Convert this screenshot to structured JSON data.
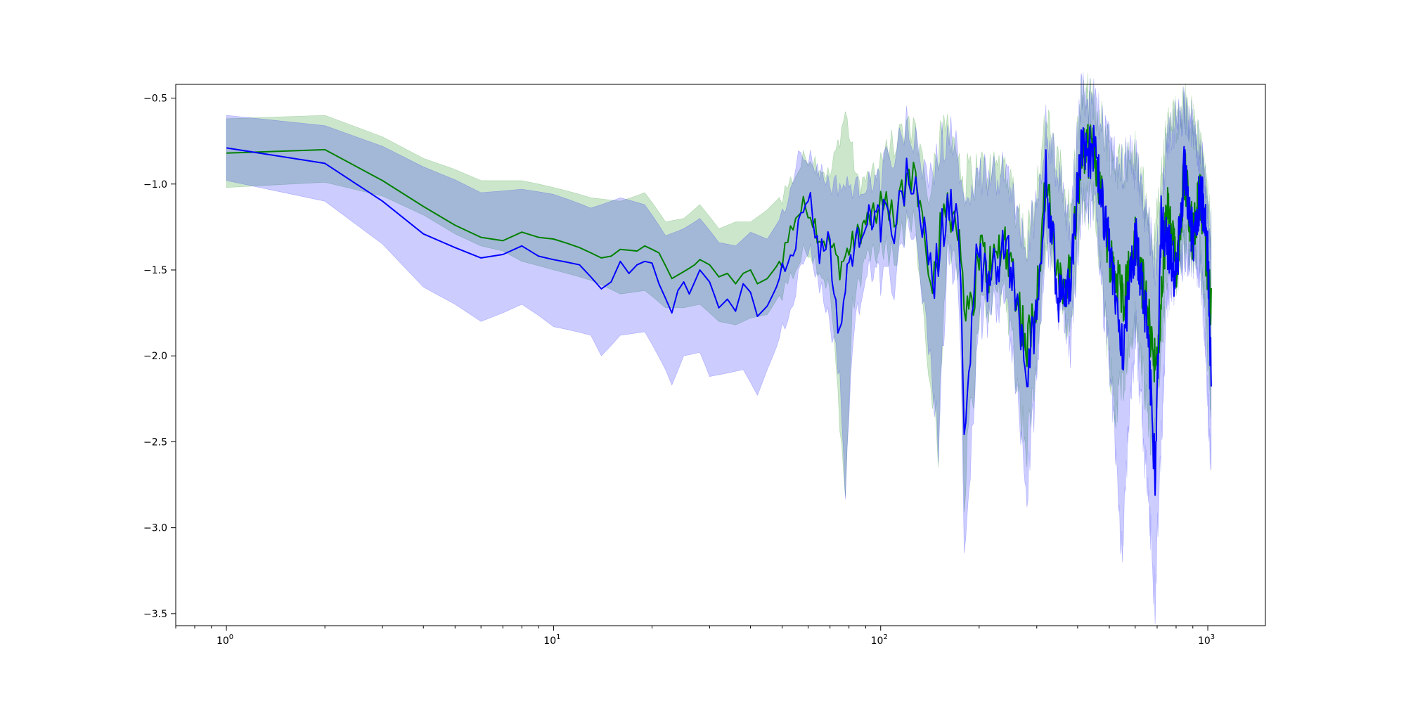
{
  "chart_data": {
    "type": "line",
    "title": "",
    "xlabel": "",
    "ylabel": "",
    "xscale": "log",
    "xlim": [
      0.7,
      1500
    ],
    "ylim": [
      -3.57,
      -0.42
    ],
    "grid": false,
    "legend": "none",
    "x_ticks": [
      {
        "value": 1,
        "base": "10",
        "exp": "0"
      },
      {
        "value": 10,
        "base": "10",
        "exp": "1"
      },
      {
        "value": 100,
        "base": "10",
        "exp": "2"
      },
      {
        "value": 1000,
        "base": "10",
        "exp": "3"
      }
    ],
    "y_ticks": [
      {
        "value": -0.5,
        "label": "−0.5"
      },
      {
        "value": -1.0,
        "label": "−1.0"
      },
      {
        "value": -1.5,
        "label": "−1.5"
      },
      {
        "value": -2.0,
        "label": "−2.0"
      },
      {
        "value": -2.5,
        "label": "−2.5"
      },
      {
        "value": -3.0,
        "label": "−3.0"
      },
      {
        "value": -3.5,
        "label": "−3.5"
      }
    ],
    "x_max": 1024,
    "series": [
      {
        "color": "#008000",
        "band_color": "#008000",
        "band_alpha": 0.2,
        "points": [
          [
            1,
            -0.82
          ],
          [
            2,
            -0.8
          ],
          [
            3,
            -0.98
          ],
          [
            4,
            -1.13
          ],
          [
            5,
            -1.24
          ],
          [
            6,
            -1.31
          ],
          [
            7,
            -1.33
          ],
          [
            8,
            -1.28
          ],
          [
            9,
            -1.31
          ],
          [
            10,
            -1.32
          ],
          [
            12,
            -1.37
          ],
          [
            14,
            -1.43
          ],
          [
            15,
            -1.42
          ],
          [
            16,
            -1.38
          ],
          [
            18,
            -1.39
          ],
          [
            19,
            -1.36
          ],
          [
            21,
            -1.4
          ],
          [
            23,
            -1.55
          ],
          [
            25,
            -1.51
          ],
          [
            27,
            -1.47
          ],
          [
            28,
            -1.44
          ],
          [
            30,
            -1.47
          ],
          [
            32,
            -1.54
          ],
          [
            34,
            -1.52
          ],
          [
            36,
            -1.58
          ],
          [
            38,
            -1.52
          ],
          [
            40,
            -1.5
          ],
          [
            42,
            -1.58
          ],
          [
            45,
            -1.55
          ],
          [
            48,
            -1.48
          ],
          [
            50,
            -1.42
          ],
          [
            55,
            -1.18
          ],
          [
            60,
            -1.12
          ],
          [
            65,
            -1.3
          ],
          [
            70,
            -1.35
          ],
          [
            75,
            -1.48
          ],
          [
            80,
            -1.38
          ],
          [
            90,
            -1.22
          ],
          [
            100,
            -1.16
          ],
          [
            110,
            -1.22
          ],
          [
            125,
            -0.9
          ],
          [
            135,
            -1.2
          ],
          [
            145,
            -1.55
          ],
          [
            160,
            -1.06
          ],
          [
            175,
            -1.32
          ],
          [
            185,
            -1.85
          ],
          [
            200,
            -1.38
          ],
          [
            215,
            -1.5
          ],
          [
            240,
            -1.32
          ],
          [
            260,
            -1.62
          ],
          [
            280,
            -1.96
          ],
          [
            300,
            -1.64
          ],
          [
            320,
            -0.98
          ],
          [
            350,
            -1.62
          ],
          [
            380,
            -1.52
          ],
          [
            410,
            -0.82
          ],
          [
            450,
            -0.8
          ],
          [
            500,
            -1.4
          ],
          [
            550,
            -1.66
          ],
          [
            600,
            -1.34
          ],
          [
            650,
            -1.72
          ],
          [
            700,
            -2.1
          ],
          [
            750,
            -1.12
          ],
          [
            800,
            -1.48
          ],
          [
            850,
            -0.92
          ],
          [
            900,
            -1.32
          ],
          [
            950,
            -1.04
          ],
          [
            1024,
            -1.74
          ]
        ],
        "lower": [
          [
            1,
            -1.02
          ],
          [
            2,
            -0.99
          ],
          [
            4,
            -1.15
          ],
          [
            6,
            -1.33
          ],
          [
            8,
            -1.45
          ],
          [
            10,
            -1.5
          ],
          [
            13,
            -1.56
          ],
          [
            16,
            -1.64
          ],
          [
            19,
            -1.62
          ],
          [
            22,
            -1.72
          ],
          [
            25,
            -1.72
          ],
          [
            28,
            -1.7
          ],
          [
            32,
            -1.8
          ],
          [
            36,
            -1.82
          ],
          [
            40,
            -1.78
          ],
          [
            45,
            -1.76
          ],
          [
            50,
            -1.62
          ],
          [
            60,
            -1.36
          ],
          [
            70,
            -1.62
          ],
          [
            78,
            -2.82
          ],
          [
            82,
            -1.72
          ],
          [
            90,
            -1.42
          ],
          [
            110,
            -1.42
          ],
          [
            125,
            -1.12
          ],
          [
            150,
            -2.48
          ],
          [
            160,
            -1.26
          ],
          [
            175,
            -1.5
          ],
          [
            180,
            -2.75
          ],
          [
            200,
            -1.72
          ],
          [
            240,
            -1.56
          ],
          [
            280,
            -2.55
          ],
          [
            320,
            -1.3
          ],
          [
            380,
            -1.84
          ],
          [
            410,
            -1.08
          ],
          [
            450,
            -1.06
          ],
          [
            520,
            -2.32
          ],
          [
            600,
            -1.76
          ],
          [
            680,
            -2.55
          ],
          [
            750,
            -1.5
          ],
          [
            850,
            -1.3
          ],
          [
            950,
            -1.38
          ],
          [
            1024,
            -2.26
          ]
        ],
        "upper": [
          [
            1,
            -0.62
          ],
          [
            2,
            -0.6
          ],
          [
            4,
            -0.85
          ],
          [
            6,
            -0.98
          ],
          [
            8,
            -0.98
          ],
          [
            10,
            -1.02
          ],
          [
            13,
            -1.08
          ],
          [
            16,
            -1.1
          ],
          [
            19,
            -1.05
          ],
          [
            22,
            -1.22
          ],
          [
            25,
            -1.2
          ],
          [
            28,
            -1.12
          ],
          [
            32,
            -1.26
          ],
          [
            36,
            -1.22
          ],
          [
            40,
            -1.22
          ],
          [
            45,
            -1.15
          ],
          [
            50,
            -1.06
          ],
          [
            60,
            -0.82
          ],
          [
            70,
            -0.96
          ],
          [
            78,
            -0.58
          ],
          [
            85,
            -1.0
          ],
          [
            100,
            -0.92
          ],
          [
            125,
            -0.66
          ],
          [
            140,
            -1.0
          ],
          [
            160,
            -0.64
          ],
          [
            180,
            -1.02
          ],
          [
            200,
            -0.96
          ],
          [
            240,
            -0.92
          ],
          [
            280,
            -1.38
          ],
          [
            320,
            -0.66
          ],
          [
            380,
            -1.22
          ],
          [
            410,
            -0.53
          ],
          [
            450,
            -0.57
          ],
          [
            520,
            -0.92
          ],
          [
            600,
            -0.86
          ],
          [
            680,
            -1.42
          ],
          [
            750,
            -0.72
          ],
          [
            850,
            -0.57
          ],
          [
            950,
            -0.82
          ],
          [
            1024,
            -1.3
          ]
        ]
      },
      {
        "color": "#0000ff",
        "band_color": "#0000ff",
        "band_alpha": 0.2,
        "points": [
          [
            1,
            -0.79
          ],
          [
            2,
            -0.88
          ],
          [
            3,
            -1.1
          ],
          [
            4,
            -1.29
          ],
          [
            5,
            -1.37
          ],
          [
            6,
            -1.43
          ],
          [
            7,
            -1.41
          ],
          [
            8,
            -1.36
          ],
          [
            9,
            -1.42
          ],
          [
            10,
            -1.44
          ],
          [
            12,
            -1.47
          ],
          [
            14,
            -1.61
          ],
          [
            15,
            -1.57
          ],
          [
            16,
            -1.45
          ],
          [
            17,
            -1.52
          ],
          [
            18,
            -1.47
          ],
          [
            19,
            -1.45
          ],
          [
            20,
            -1.46
          ],
          [
            21,
            -1.58
          ],
          [
            23,
            -1.75
          ],
          [
            24,
            -1.62
          ],
          [
            25,
            -1.57
          ],
          [
            26,
            -1.64
          ],
          [
            28,
            -1.5
          ],
          [
            30,
            -1.57
          ],
          [
            32,
            -1.72
          ],
          [
            34,
            -1.67
          ],
          [
            36,
            -1.74
          ],
          [
            38,
            -1.58
          ],
          [
            40,
            -1.63
          ],
          [
            42,
            -1.77
          ],
          [
            45,
            -1.71
          ],
          [
            48,
            -1.6
          ],
          [
            52,
            -1.4
          ],
          [
            55,
            -1.32
          ],
          [
            60,
            -1.04
          ],
          [
            65,
            -1.4
          ],
          [
            70,
            -1.3
          ],
          [
            72,
            -1.68
          ],
          [
            75,
            -1.85
          ],
          [
            80,
            -1.45
          ],
          [
            90,
            -1.2
          ],
          [
            100,
            -1.18
          ],
          [
            110,
            -1.24
          ],
          [
            125,
            -0.88
          ],
          [
            135,
            -1.25
          ],
          [
            145,
            -1.6
          ],
          [
            160,
            -1.06
          ],
          [
            175,
            -1.35
          ],
          [
            180,
            -2.4
          ],
          [
            195,
            -1.46
          ],
          [
            215,
            -1.55
          ],
          [
            240,
            -1.32
          ],
          [
            260,
            -1.7
          ],
          [
            280,
            -2.15
          ],
          [
            300,
            -1.7
          ],
          [
            320,
            -0.96
          ],
          [
            350,
            -1.68
          ],
          [
            380,
            -1.55
          ],
          [
            410,
            -0.78
          ],
          [
            450,
            -0.82
          ],
          [
            500,
            -1.4
          ],
          [
            550,
            -1.95
          ],
          [
            600,
            -1.32
          ],
          [
            650,
            -1.8
          ],
          [
            690,
            -2.68
          ],
          [
            720,
            -1.2
          ],
          [
            800,
            -1.55
          ],
          [
            850,
            -0.88
          ],
          [
            900,
            -1.35
          ],
          [
            950,
            -1.02
          ],
          [
            1000,
            -1.4
          ],
          [
            1024,
            -2.15
          ]
        ],
        "lower": [
          [
            1,
            -0.98
          ],
          [
            2,
            -1.1
          ],
          [
            4,
            -1.6
          ],
          [
            6,
            -1.8
          ],
          [
            8,
            -1.7
          ],
          [
            10,
            -1.83
          ],
          [
            13,
            -1.88
          ],
          [
            14,
            -2.0
          ],
          [
            16,
            -1.88
          ],
          [
            19,
            -1.86
          ],
          [
            22,
            -2.08
          ],
          [
            23,
            -2.17
          ],
          [
            25,
            -2.0
          ],
          [
            28,
            -1.98
          ],
          [
            30,
            -2.12
          ],
          [
            34,
            -2.1
          ],
          [
            38,
            -2.08
          ],
          [
            42,
            -2.23
          ],
          [
            45,
            -2.08
          ],
          [
            48,
            -1.95
          ],
          [
            52,
            -1.74
          ],
          [
            60,
            -1.36
          ],
          [
            70,
            -1.8
          ],
          [
            75,
            -2.1
          ],
          [
            78,
            -2.82
          ],
          [
            82,
            -1.9
          ],
          [
            90,
            -1.5
          ],
          [
            110,
            -1.52
          ],
          [
            125,
            -1.1
          ],
          [
            150,
            -2.48
          ],
          [
            160,
            -1.3
          ],
          [
            175,
            -1.7
          ],
          [
            180,
            -3.04
          ],
          [
            200,
            -1.8
          ],
          [
            240,
            -1.58
          ],
          [
            280,
            -2.8
          ],
          [
            320,
            -1.25
          ],
          [
            380,
            -1.9
          ],
          [
            410,
            -1.1
          ],
          [
            450,
            -1.08
          ],
          [
            520,
            -2.44
          ],
          [
            545,
            -3.08
          ],
          [
            600,
            -1.8
          ],
          [
            690,
            -3.4
          ],
          [
            700,
            -3.02
          ],
          [
            750,
            -1.6
          ],
          [
            850,
            -1.36
          ],
          [
            950,
            -1.44
          ],
          [
            1024,
            -2.6
          ]
        ],
        "upper": [
          [
            1,
            -0.6
          ],
          [
            2,
            -0.66
          ],
          [
            4,
            -0.9
          ],
          [
            6,
            -1.05
          ],
          [
            8,
            -1.03
          ],
          [
            10,
            -1.06
          ],
          [
            13,
            -1.14
          ],
          [
            16,
            -1.08
          ],
          [
            19,
            -1.12
          ],
          [
            22,
            -1.3
          ],
          [
            25,
            -1.26
          ],
          [
            28,
            -1.2
          ],
          [
            32,
            -1.34
          ],
          [
            36,
            -1.36
          ],
          [
            40,
            -1.28
          ],
          [
            45,
            -1.32
          ],
          [
            50,
            -1.18
          ],
          [
            55,
            -0.86
          ],
          [
            60,
            -0.84
          ],
          [
            70,
            -1.0
          ],
          [
            85,
            -1.02
          ],
          [
            100,
            -0.96
          ],
          [
            125,
            -0.68
          ],
          [
            140,
            -1.04
          ],
          [
            160,
            -0.68
          ],
          [
            180,
            -1.06
          ],
          [
            200,
            -1.0
          ],
          [
            240,
            -0.94
          ],
          [
            280,
            -1.46
          ],
          [
            320,
            -0.72
          ],
          [
            380,
            -1.26
          ],
          [
            410,
            -0.5
          ],
          [
            450,
            -0.58
          ],
          [
            520,
            -0.9
          ],
          [
            600,
            -0.9
          ],
          [
            690,
            -1.52
          ],
          [
            750,
            -0.78
          ],
          [
            850,
            -0.6
          ],
          [
            950,
            -0.84
          ],
          [
            1024,
            -1.36
          ]
        ]
      }
    ]
  }
}
